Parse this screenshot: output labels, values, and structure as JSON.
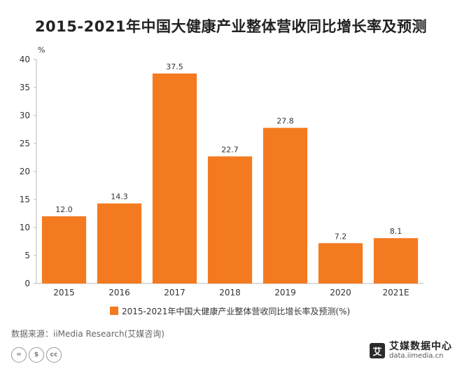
{
  "title": "2015-2021年中国大健康产业整体营收同比增长率及预测",
  "source": "数据来源：iiMedia Research(艾媒咨询)",
  "brand": {
    "name": "艾媒数据中心",
    "url": "data.iimedia.cn",
    "logo_char": "艾"
  },
  "cc_badges": [
    "=",
    "$",
    "cc"
  ],
  "colors": {
    "bar": "#F47A20",
    "axis": "#bbbbbb",
    "text": "#333333"
  },
  "chart_data": {
    "type": "bar",
    "title": "2015-2021年中国大健康产业整体营收同比增长率及预测",
    "ylabel": "%",
    "xlabel": "",
    "categories": [
      "2015",
      "2016",
      "2017",
      "2018",
      "2019",
      "2020",
      "2021E"
    ],
    "series": [
      {
        "name": "2015-2021年中国大健康产业整体营收同比增长率及预测(%)",
        "values": [
          12.0,
          14.3,
          37.5,
          22.7,
          27.8,
          7.2,
          8.1
        ]
      }
    ],
    "data_labels": [
      "12.0",
      "14.3",
      "37.5",
      "22.7",
      "27.8",
      "7.2",
      "8.1"
    ],
    "ylim": [
      0,
      40
    ],
    "yticks": [
      0,
      5,
      10,
      15,
      20,
      25,
      30,
      35,
      40
    ],
    "grid": false,
    "legend": "bottom"
  }
}
